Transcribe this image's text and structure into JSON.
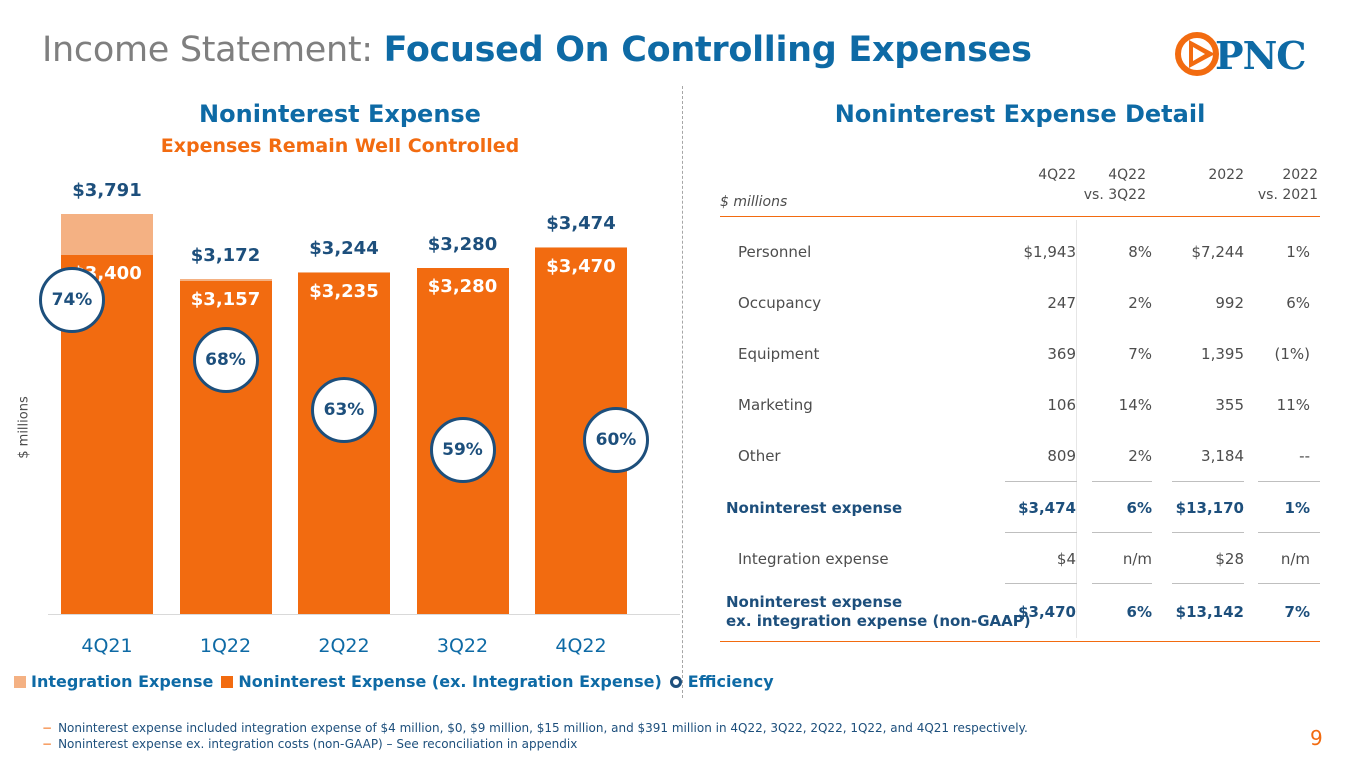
{
  "title": {
    "prefix": "Income Statement:",
    "main": "Focused On Controlling Expenses"
  },
  "logo": {
    "text": "PNC"
  },
  "left_panel": {
    "title": "Noninterest Expense",
    "subtitle": "Expenses Remain Well Controlled"
  },
  "chart_data": {
    "type": "bar",
    "stacked": true,
    "ylabel": "$ millions",
    "ylim": [
      0,
      3791
    ],
    "categories": [
      "4Q21",
      "1Q22",
      "2Q22",
      "3Q22",
      "4Q22"
    ],
    "series": [
      {
        "name": "Noninterest Expense (ex. Integration Expense)",
        "values": [
          3400,
          3157,
          3235,
          3280,
          3470
        ],
        "labels": [
          "$3,400",
          "$3,157",
          "$3,235",
          "$3,280",
          "$3,470"
        ],
        "color": "#f26b10"
      },
      {
        "name": "Integration Expense",
        "values": [
          391,
          15,
          9,
          0,
          4
        ],
        "color": "#f4b183"
      }
    ],
    "totals": [
      3791,
      3172,
      3244,
      3280,
      3474
    ],
    "total_labels": [
      "$3,791",
      "$3,172",
      "$3,244",
      "$3,280",
      "$3,474"
    ],
    "efficiency": {
      "name": "Efficiency",
      "values": [
        74,
        68,
        63,
        59,
        60
      ],
      "labels": [
        "74%",
        "68%",
        "63%",
        "59%",
        "60%"
      ]
    },
    "legend": [
      "Integration Expense",
      "Noninterest Expense (ex. Integration Expense)",
      "Efficiency"
    ]
  },
  "table": {
    "title": "Noninterest Expense Detail",
    "units": "$ millions",
    "headers": [
      {
        "line1": "",
        "line2": "4Q22"
      },
      {
        "line1": "4Q22",
        "line2": "vs. 3Q22"
      },
      {
        "line1": "",
        "line2": "2022"
      },
      {
        "line1": "2022",
        "line2": "vs. 2021"
      }
    ],
    "rows": [
      {
        "label": "Personnel",
        "values": [
          "$1,943",
          "8%",
          "$7,244",
          "1%"
        ],
        "bold": false
      },
      {
        "label": "Occupancy",
        "values": [
          "247",
          "2%",
          "992",
          "6%"
        ],
        "bold": false
      },
      {
        "label": "Equipment",
        "values": [
          "369",
          "7%",
          "1,395",
          "(1%)"
        ],
        "bold": false
      },
      {
        "label": "Marketing",
        "values": [
          "106",
          "14%",
          "355",
          "11%"
        ],
        "bold": false
      },
      {
        "label": "Other",
        "values": [
          "809",
          "2%",
          "3,184",
          "--"
        ],
        "bold": false
      },
      {
        "label": "Noninterest expense",
        "values": [
          "$3,474",
          "6%",
          "$13,170",
          "1%"
        ],
        "bold": true
      },
      {
        "label": "Integration expense",
        "values": [
          "$4",
          "n/m",
          "$28",
          "n/m"
        ],
        "bold": false
      },
      {
        "label_line1": "Noninterest expense",
        "label_line2": "ex. integration expense (non-GAAP)",
        "values": [
          "$3,470",
          "6%",
          "$13,142",
          "7%"
        ],
        "bold": true
      }
    ]
  },
  "footnotes": [
    "Noninterest expense included integration expense of $4 million, $0, $9 million, $15 million, and $391 million in 4Q22, 3Q22, 2Q22, 1Q22, and 4Q21 respectively.",
    "Noninterest expense ex. integration costs (non-GAAP) – See reconciliation in appendix"
  ],
  "page_number": "9",
  "colors": {
    "orange": "#f26b10",
    "light_orange": "#f4b183",
    "blue": "#0e6aa5",
    "navy": "#1d4f7c"
  }
}
